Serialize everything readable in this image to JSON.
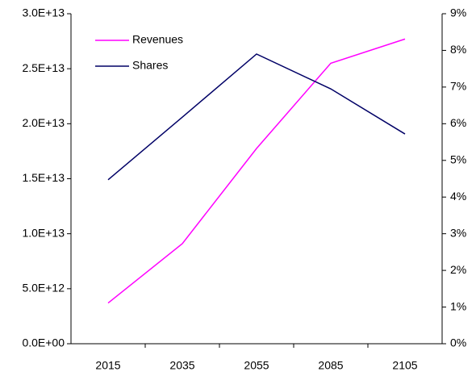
{
  "chart_data": {
    "type": "line",
    "categories": [
      "2015",
      "2035",
      "2055",
      "2085",
      "2105"
    ],
    "series": [
      {
        "name": "Revenues",
        "color": "#ff00ff",
        "values": [
          3700000000000.0,
          9100000000000.0,
          17750000000000.0,
          25500000000000.0,
          27700000000000.0
        ]
      },
      {
        "name": "Shares",
        "color": "#000066",
        "axis": "y2",
        "values": [
          4.47,
          6.18,
          7.9,
          6.95,
          5.72
        ]
      }
    ],
    "ylim": [
      0,
      30000000000000.0
    ],
    "yticks": [
      {
        "value": 0,
        "label": "0.0E+00"
      },
      {
        "value": 5000000000000.0,
        "label": "5.0E+12"
      },
      {
        "value": 10000000000000.0,
        "label": "1.0E+13"
      },
      {
        "value": 15000000000000.0,
        "label": "1.5E+13"
      },
      {
        "value": 20000000000000.0,
        "label": "2.0E+13"
      },
      {
        "value": 25000000000000.0,
        "label": "2.5E+13"
      },
      {
        "value": 30000000000000.0,
        "label": "3.0E+13"
      }
    ],
    "y2lim": [
      0,
      9
    ],
    "y2ticks": [
      {
        "value": 0,
        "label": "0%"
      },
      {
        "value": 1,
        "label": "1%"
      },
      {
        "value": 2,
        "label": "2%"
      },
      {
        "value": 3,
        "label": "3%"
      },
      {
        "value": 4,
        "label": "4%"
      },
      {
        "value": 5,
        "label": "5%"
      },
      {
        "value": 6,
        "label": "6%"
      },
      {
        "value": 7,
        "label": "7%"
      },
      {
        "value": 8,
        "label": "8%"
      },
      {
        "value": 9,
        "label": "9%"
      }
    ],
    "legend": "upper-left",
    "grid": false
  }
}
